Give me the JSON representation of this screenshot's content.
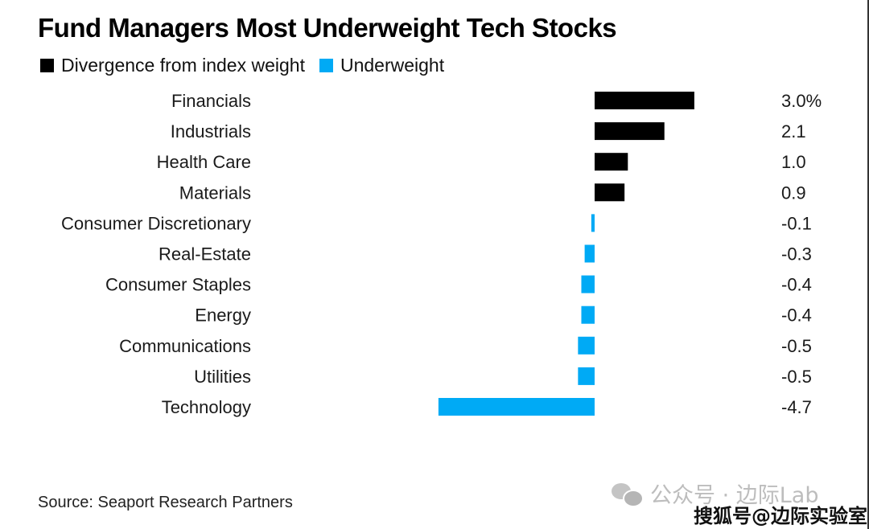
{
  "header": {
    "title": "Fund Managers Most Underweight Tech Stocks"
  },
  "legend": [
    {
      "label": "Divergence from index weight",
      "color": "#000000"
    },
    {
      "label": "Underweight",
      "color": "#00aaf5"
    }
  ],
  "footer": {
    "source": "Source: Seaport Research Partners"
  },
  "watermarks": {
    "wechat": "公众号 · 边际Lab",
    "sohu": "搜狐号@边际实验室"
  },
  "chart_data": {
    "type": "bar",
    "orientation": "horizontal",
    "title": "Fund Managers Most Underweight Tech Stocks",
    "xlabel": "",
    "ylabel": "",
    "unit": "%",
    "categories": [
      "Financials",
      "Industrials",
      "Health Care",
      "Materials",
      "Consumer Discretionary",
      "Real-Estate",
      "Consumer Staples",
      "Energy",
      "Communications",
      "Utilities",
      "Technology"
    ],
    "values": [
      3.0,
      2.1,
      1.0,
      0.9,
      -0.1,
      -0.3,
      -0.4,
      -0.4,
      -0.5,
      -0.5,
      -4.7
    ],
    "value_labels": [
      "3.0%",
      "2.1",
      "1.0",
      "0.9",
      "-0.1",
      "-0.3",
      "-0.4",
      "-0.4",
      "-0.5",
      "-0.5",
      "-4.7"
    ],
    "series": [
      {
        "name": "Divergence from index weight",
        "color": "#000000",
        "applies_to": "positive"
      },
      {
        "name": "Underweight",
        "color": "#00aaf5",
        "applies_to": "negative"
      }
    ],
    "xlim": [
      -4.7,
      3.0
    ],
    "grid": false,
    "legend_position": "top-left"
  }
}
